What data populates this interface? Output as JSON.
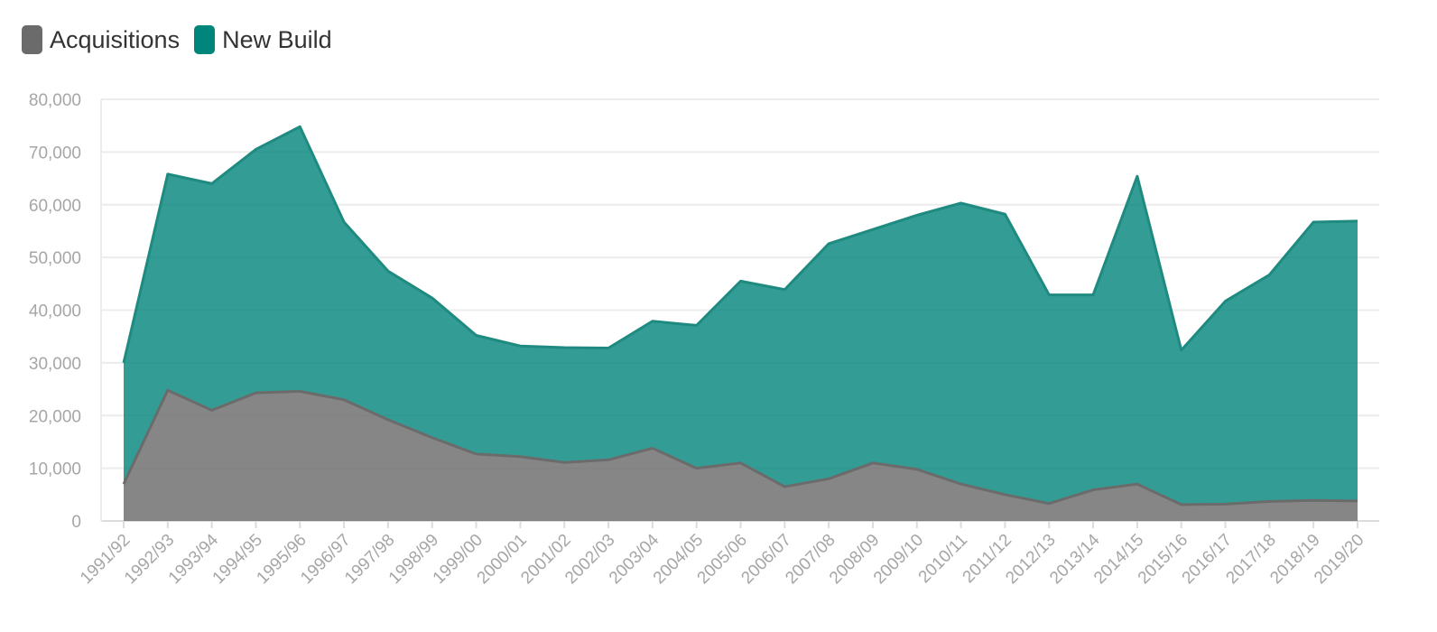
{
  "chart_data": {
    "type": "area",
    "stacked": true,
    "title": "",
    "xlabel": "",
    "ylabel": "",
    "ylim": [
      0,
      80000
    ],
    "yticks": [
      "0",
      "10,000",
      "20,000",
      "30,000",
      "40,000",
      "50,000",
      "60,000",
      "70,000",
      "80,000"
    ],
    "grid": true,
    "legend_position": "top-left",
    "categories": [
      "1991/92",
      "1992/93",
      "1993/94",
      "1994/95",
      "1995/96",
      "1996/97",
      "1997/98",
      "1998/99",
      "1999/00",
      "2000/01",
      "2001/02",
      "2002/03",
      "2003/04",
      "2004/05",
      "2005/06",
      "2006/07",
      "2007/08",
      "2008/09",
      "2009/10",
      "2010/11",
      "2011/12",
      "2012/13",
      "2013/14",
      "2014/15",
      "2015/16",
      "2016/17",
      "2017/18",
      "2018/19",
      "2019/20"
    ],
    "series": [
      {
        "name": "Acquisitions",
        "color": "#6b6b6b",
        "values": [
          7000,
          24800,
          21000,
          24300,
          24600,
          23000,
          19200,
          15800,
          12700,
          12200,
          11100,
          11600,
          13800,
          10000,
          11000,
          6500,
          8000,
          11000,
          9800,
          7000,
          5000,
          3300,
          5900,
          7000,
          3100,
          3200,
          3700,
          3900,
          3800
        ]
      },
      {
        "name": "New Build",
        "color": "#00857a",
        "values": [
          23000,
          41000,
          43000,
          46200,
          50200,
          33700,
          28200,
          26500,
          22500,
          21000,
          21800,
          21200,
          24100,
          27100,
          34500,
          37400,
          44600,
          44300,
          48200,
          53300,
          53200,
          39600,
          37000,
          58400,
          29300,
          38500,
          43000,
          52800,
          53100
        ]
      }
    ]
  }
}
